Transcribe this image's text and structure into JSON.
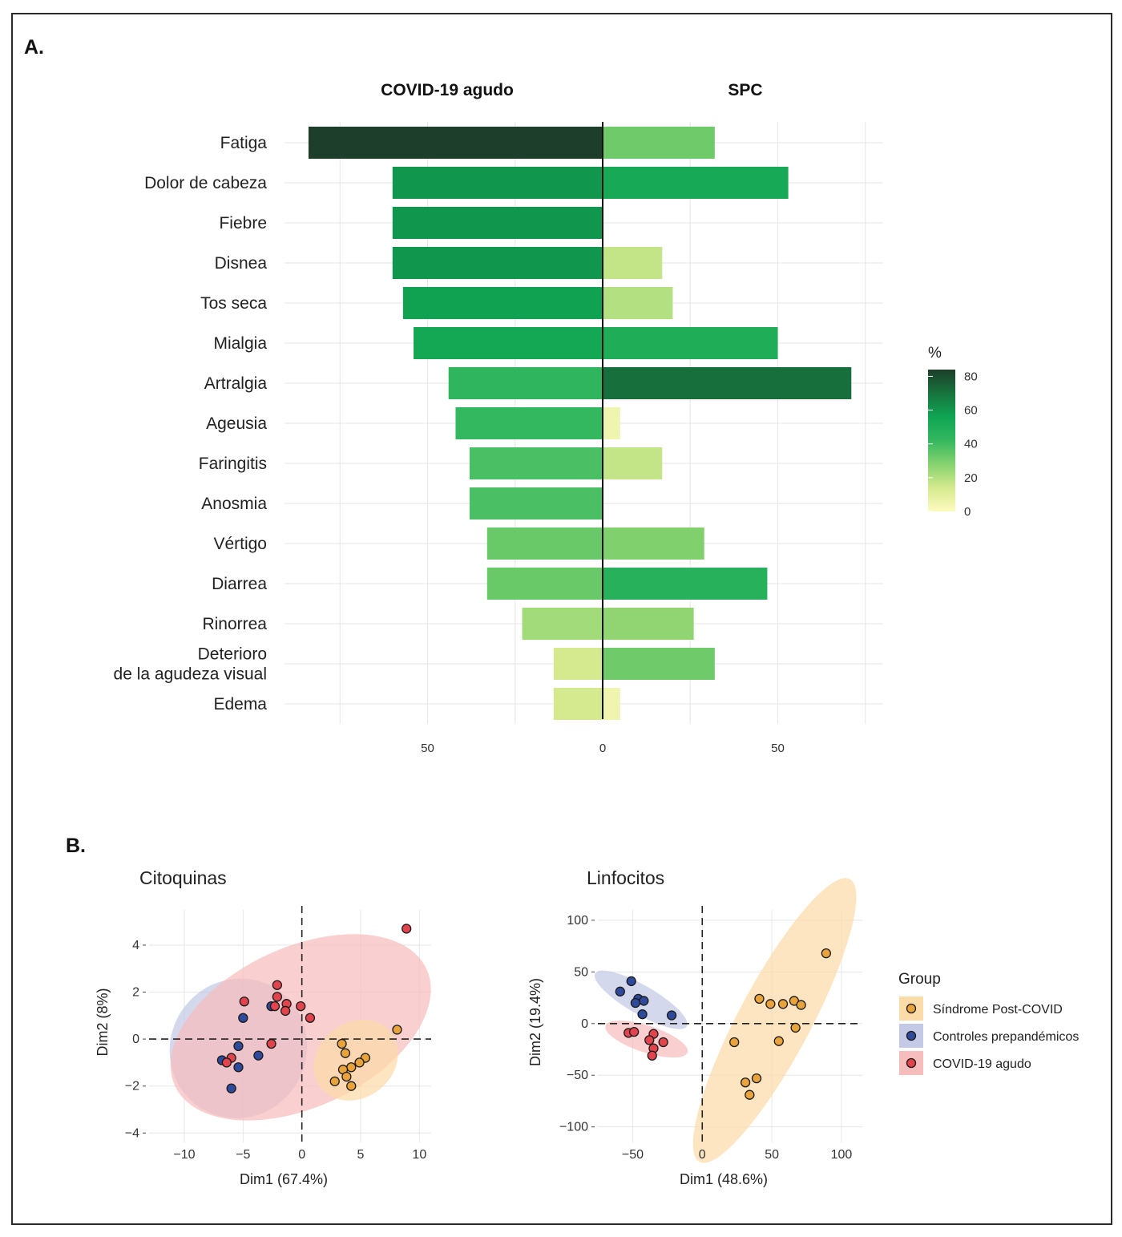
{
  "figure": {
    "panel_a_label": "A.",
    "panel_b_label": "B.",
    "colors": {
      "scale": [
        "#fdfbbf",
        "#d5ea8e",
        "#86d26f",
        "#34b85f",
        "#0fa553",
        "#17743d",
        "#1c3e2a"
      ],
      "post_covid": "#e8a33b",
      "post_covid_fill": "#fbdba8",
      "prepandemic": "#2f4a9a",
      "prepandemic_fill": "#c4c9e6",
      "acute": "#e2444d",
      "acute_fill": "#f7bcbc"
    }
  },
  "chart_data": [
    {
      "type": "bar",
      "orientation": "horizontal-diverging",
      "panel": "A.",
      "left_title": "COVID-19 agudo",
      "right_title": "SPC",
      "categories": [
        "Fatiga",
        "Dolor de cabeza",
        "Fiebre",
        "Disnea",
        "Tos seca",
        "Mialgia",
        "Artralgia",
        "Ageusia",
        "Faringitis",
        "Anosmia",
        "Vértigo",
        "Diarrea",
        "Rinorrea",
        "Deterioro\nde la agudeza visual",
        "Edema"
      ],
      "series": [
        {
          "name": "COVID-19 agudo",
          "values": [
            84,
            60,
            60,
            60,
            57,
            54,
            44,
            42,
            38,
            38,
            33,
            33,
            23,
            14,
            14
          ]
        },
        {
          "name": "SPC",
          "values": [
            32,
            53,
            0,
            17,
            20,
            50,
            71,
            5,
            17,
            0,
            29,
            47,
            26,
            32,
            5
          ]
        }
      ],
      "x_ticks": [
        {
          "label": "50",
          "value": -50
        },
        {
          "label": "0",
          "value": 0
        },
        {
          "label": "50",
          "value": 50
        }
      ],
      "xlim": [
        -90,
        80
      ],
      "grid": true,
      "legend": {
        "title": "%",
        "ticks": [
          "80",
          "60",
          "40",
          "20",
          "0"
        ],
        "tick_values": [
          80,
          60,
          40,
          20,
          0
        ],
        "range": [
          0,
          84
        ],
        "placement": "right"
      }
    },
    {
      "type": "scatter",
      "panel": "B.",
      "title": "Citoquinas",
      "xlabel": "Dim1 (67.4%)",
      "ylabel": "Dim2 (8%)",
      "xlim": [
        -13,
        11
      ],
      "ylim": [
        -4.4,
        5.5
      ],
      "x_ticks": [
        {
          "label": "−10",
          "value": -10
        },
        {
          "label": "−5",
          "value": -5
        },
        {
          "label": "0",
          "value": 0
        },
        {
          "label": "5",
          "value": 5
        },
        {
          "label": "10",
          "value": 10
        }
      ],
      "y_ticks": [
        {
          "label": "4",
          "value": 4
        },
        {
          "label": "2",
          "value": 2
        },
        {
          "label": "0",
          "value": 0
        },
        {
          "label": "−2",
          "value": -2
        },
        {
          "label": "−4",
          "value": -4
        }
      ],
      "grid": true,
      "series": [
        {
          "name": "Controles prepandémicos",
          "color_key": "prepandemic",
          "x": [
            -5.0,
            -5.4,
            -6.8,
            -3.7,
            -5.4,
            -6.0,
            -2.6
          ],
          "y": [
            0.9,
            -0.3,
            -0.9,
            -0.7,
            -1.2,
            -2.1,
            1.4
          ]
        },
        {
          "name": "COVID-19 agudo",
          "color_key": "acute",
          "x": [
            -4.9,
            -2.1,
            -2.1,
            -1.3,
            -1.4,
            -0.1,
            0.7,
            -2.3,
            -6.0,
            -6.4,
            8.9,
            -2.6
          ],
          "y": [
            1.6,
            2.3,
            1.8,
            1.5,
            1.2,
            1.4,
            0.9,
            1.4,
            -0.8,
            -1.0,
            4.7,
            -0.2
          ]
        },
        {
          "name": "Síndrome Post-COVID",
          "color_key": "post_covid",
          "x": [
            8.1,
            3.4,
            3.7,
            5.4,
            4.9,
            4.2,
            3.5,
            2.8,
            3.8,
            4.2
          ],
          "y": [
            0.4,
            -0.2,
            -0.6,
            -0.8,
            -1.0,
            -1.2,
            -1.3,
            -1.8,
            -1.6,
            -2.0
          ]
        }
      ],
      "ellipses": [
        {
          "group": "Controles prepandémicos",
          "cx": -5.4,
          "cy": -0.4,
          "rx": 6.0,
          "ry": 2.9,
          "angle": 58
        },
        {
          "group": "COVID-19 agudo",
          "cx": -0.1,
          "cy": 0.5,
          "rx": 11.8,
          "ry": 3.4,
          "angle": 25
        },
        {
          "group": "Síndrome Post-COVID",
          "cx": 4.6,
          "cy": -0.9,
          "rx": 3.8,
          "ry": 1.6,
          "angle": 38
        }
      ]
    },
    {
      "type": "scatter",
      "panel": "B.",
      "title": "Linfocitos",
      "xlabel": "Dim1 (48.6%)",
      "ylabel": "Dim2 (19.4%)",
      "xlim": [
        -75,
        115
      ],
      "ylim": [
        -115,
        110
      ],
      "x_ticks": [
        {
          "label": "−50",
          "value": -50
        },
        {
          "label": "0",
          "value": 0
        },
        {
          "label": "50",
          "value": 50
        },
        {
          "label": "100",
          "value": 100
        }
      ],
      "y_ticks": [
        {
          "label": "100",
          "value": 100
        },
        {
          "label": "50",
          "value": 50
        },
        {
          "label": "0",
          "value": 0
        },
        {
          "label": "−50",
          "value": -50
        },
        {
          "label": "−100",
          "value": -100
        }
      ],
      "grid": true,
      "series": [
        {
          "name": "Síndrome Post-COVID",
          "color_key": "post_covid",
          "x": [
            89,
            41,
            49,
            58,
            66,
            71,
            67,
            55,
            23,
            39,
            31,
            34
          ],
          "y": [
            68,
            24,
            19,
            19,
            22,
            18,
            -4,
            -17,
            -18,
            -53,
            -57,
            -69
          ]
        },
        {
          "name": "Controles prepandémicos",
          "color_key": "prepandemic",
          "x": [
            -51,
            -59,
            -46,
            -42,
            -48,
            -43,
            -22
          ],
          "y": [
            41,
            31,
            24,
            22,
            20,
            9,
            8
          ]
        },
        {
          "name": "COVID-19 agudo",
          "color_key": "acute",
          "x": [
            -53,
            -49,
            -35,
            -38,
            -28,
            -35,
            -36
          ],
          "y": [
            -9,
            -8,
            -10,
            -16,
            -18,
            -24,
            -31
          ]
        }
      ],
      "ellipses": [
        {
          "group": "Síndrome Post-COVID",
          "cx": 52,
          "cy": 3,
          "rx": 115,
          "ry": 35,
          "angle": 62
        },
        {
          "group": "Controles prepandémicos",
          "cx": -44,
          "cy": 23,
          "rx": 38,
          "ry": 14,
          "angle": -30
        },
        {
          "group": "COVID-19 agudo",
          "cx": -40,
          "cy": -15,
          "rx": 31,
          "ry": 13,
          "angle": -18
        }
      ],
      "legend": {
        "title": "Group",
        "placement": "right",
        "entries": [
          {
            "label": "Síndrome Post-COVID",
            "color_key": "post_covid"
          },
          {
            "label": "Controles prepandémicos",
            "color_key": "prepandemic"
          },
          {
            "label": "COVID-19 agudo",
            "color_key": "acute"
          }
        ]
      }
    }
  ]
}
